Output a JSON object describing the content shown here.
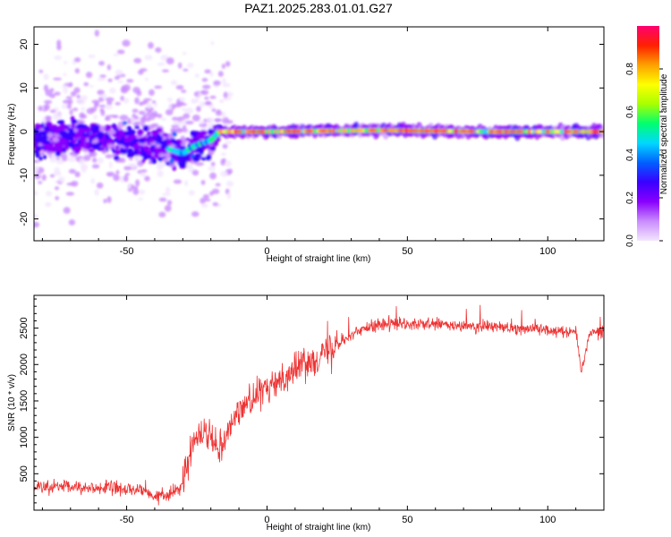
{
  "title": "PAZ1.2025.283.01.01.G27",
  "chart_data": [
    {
      "type": "heatmap",
      "xlabel": "Height of straight line (km)",
      "ylabel": "Frequency (Hz)",
      "xlim": [
        -83,
        120
      ],
      "ylim": [
        -25,
        24
      ],
      "xticks": [
        -50,
        0,
        50,
        100
      ],
      "yticks": [
        -20,
        -10,
        0,
        10,
        20
      ],
      "colorbar": {
        "label": "Normalized spectral amplitude",
        "range": [
          0,
          1
        ],
        "ticks": [
          0.0,
          0.2,
          0.4,
          0.6,
          0.8
        ],
        "colors": [
          "#f3e6ff",
          "#c98cff",
          "#8a00ff",
          "#3a00ff",
          "#0060ff",
          "#00d8ff",
          "#00ff70",
          "#a8ff00",
          "#ffff00",
          "#ffa000",
          "#ff2000",
          "#ff0070"
        ]
      },
      "ridge": {
        "description_x": [
          -83,
          -60,
          -45,
          -35,
          -30,
          -25,
          -20,
          -17,
          0,
          40,
          80,
          120
        ],
        "freq": [
          -2,
          -1,
          -3,
          -4,
          -5,
          -3,
          -2,
          0,
          0,
          0.3,
          0,
          0
        ]
      }
    },
    {
      "type": "line",
      "xlabel": "Height of straight line (km)",
      "ylabel": "SNR (10 * v/v)",
      "xlim": [
        -83,
        120
      ],
      "ylim": [
        0,
        2950
      ],
      "xticks": [
        -50,
        0,
        50,
        100
      ],
      "yticks": [
        500,
        1000,
        1500,
        2000,
        2500
      ],
      "color": "#ee3333",
      "series": [
        {
          "name": "SNR",
          "x": [
            -83,
            -75,
            -65,
            -55,
            -45,
            -40,
            -35,
            -30,
            -28,
            -25,
            -20,
            -17,
            -12,
            -8,
            -5,
            0,
            5,
            10,
            15,
            20,
            25,
            30,
            35,
            40,
            50,
            60,
            70,
            80,
            90,
            100,
            110,
            112,
            115,
            120
          ],
          "y": [
            300,
            320,
            310,
            300,
            270,
            180,
            200,
            350,
            700,
            1100,
            1050,
            850,
            1250,
            1450,
            1550,
            1650,
            1800,
            1950,
            2050,
            2150,
            2300,
            2400,
            2500,
            2550,
            2550,
            2550,
            2520,
            2520,
            2500,
            2480,
            2450,
            1900,
            2450,
            2450
          ]
        }
      ]
    }
  ]
}
